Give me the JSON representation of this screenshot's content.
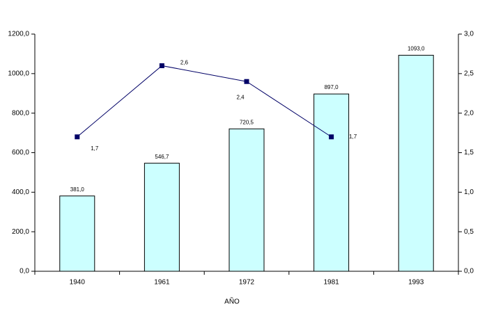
{
  "chart_data": {
    "type": "combo",
    "x_label": "AÑO",
    "categories": [
      "1940",
      "1961",
      "1972",
      "1981",
      "1993"
    ],
    "series": [
      {
        "type": "bar",
        "axis": "y",
        "color": "#ccffff",
        "values": [
          381.0,
          546.7,
          720.5,
          897.0,
          1093.0
        ],
        "value_labels": [
          "381,0",
          "546,7",
          "720,5",
          "897,0",
          "1093,0"
        ]
      },
      {
        "type": "line",
        "axis": "y2",
        "color": "#000066",
        "values": [
          1.7,
          2.6,
          2.4,
          1.7,
          null
        ],
        "value_labels": [
          "1,7",
          "2,6",
          "2,4",
          "1,7",
          null
        ]
      }
    ],
    "ylim": [
      0,
      1200
    ],
    "yticks": [
      {
        "value": 0,
        "label": "0,0"
      },
      {
        "value": 200,
        "label": "200,0"
      },
      {
        "value": 400,
        "label": "400,0"
      },
      {
        "value": 600,
        "label": "600,0"
      },
      {
        "value": 800,
        "label": "800,0"
      },
      {
        "value": 1000,
        "label": "1000,0"
      },
      {
        "value": 1200,
        "label": "1200,0"
      }
    ],
    "y2lim": [
      0,
      3
    ],
    "y2ticks": [
      {
        "value": 0,
        "label": "0,0"
      },
      {
        "value": 0.5,
        "label": "0,5"
      },
      {
        "value": 1,
        "label": "1,0"
      },
      {
        "value": 1.5,
        "label": "1,5"
      },
      {
        "value": 2,
        "label": "2,0"
      },
      {
        "value": 2.5,
        "label": "2,5"
      },
      {
        "value": 3,
        "label": "3,0"
      }
    ],
    "grid": false
  }
}
